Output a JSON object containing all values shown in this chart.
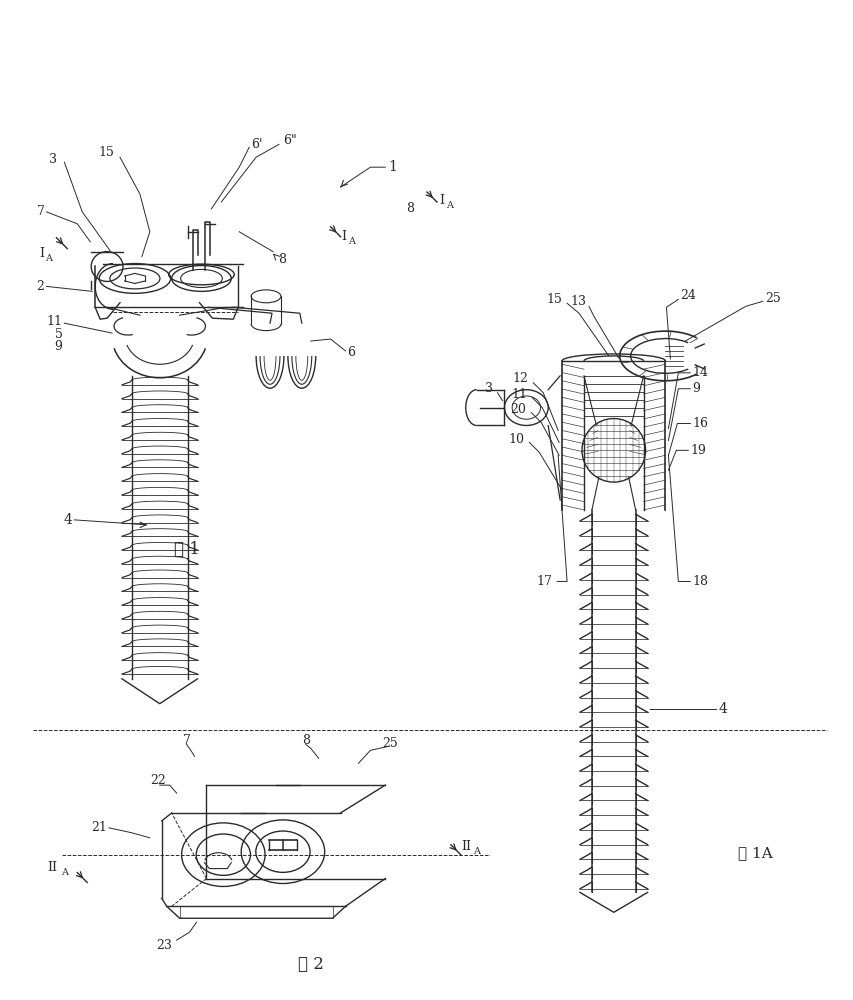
{
  "bg_color": "#ffffff",
  "line_color": "#2a2a2a",
  "lw": 1.0,
  "fig1_label": "图 1",
  "fig1a_label": "图 1A",
  "fig2_label": "图 2"
}
